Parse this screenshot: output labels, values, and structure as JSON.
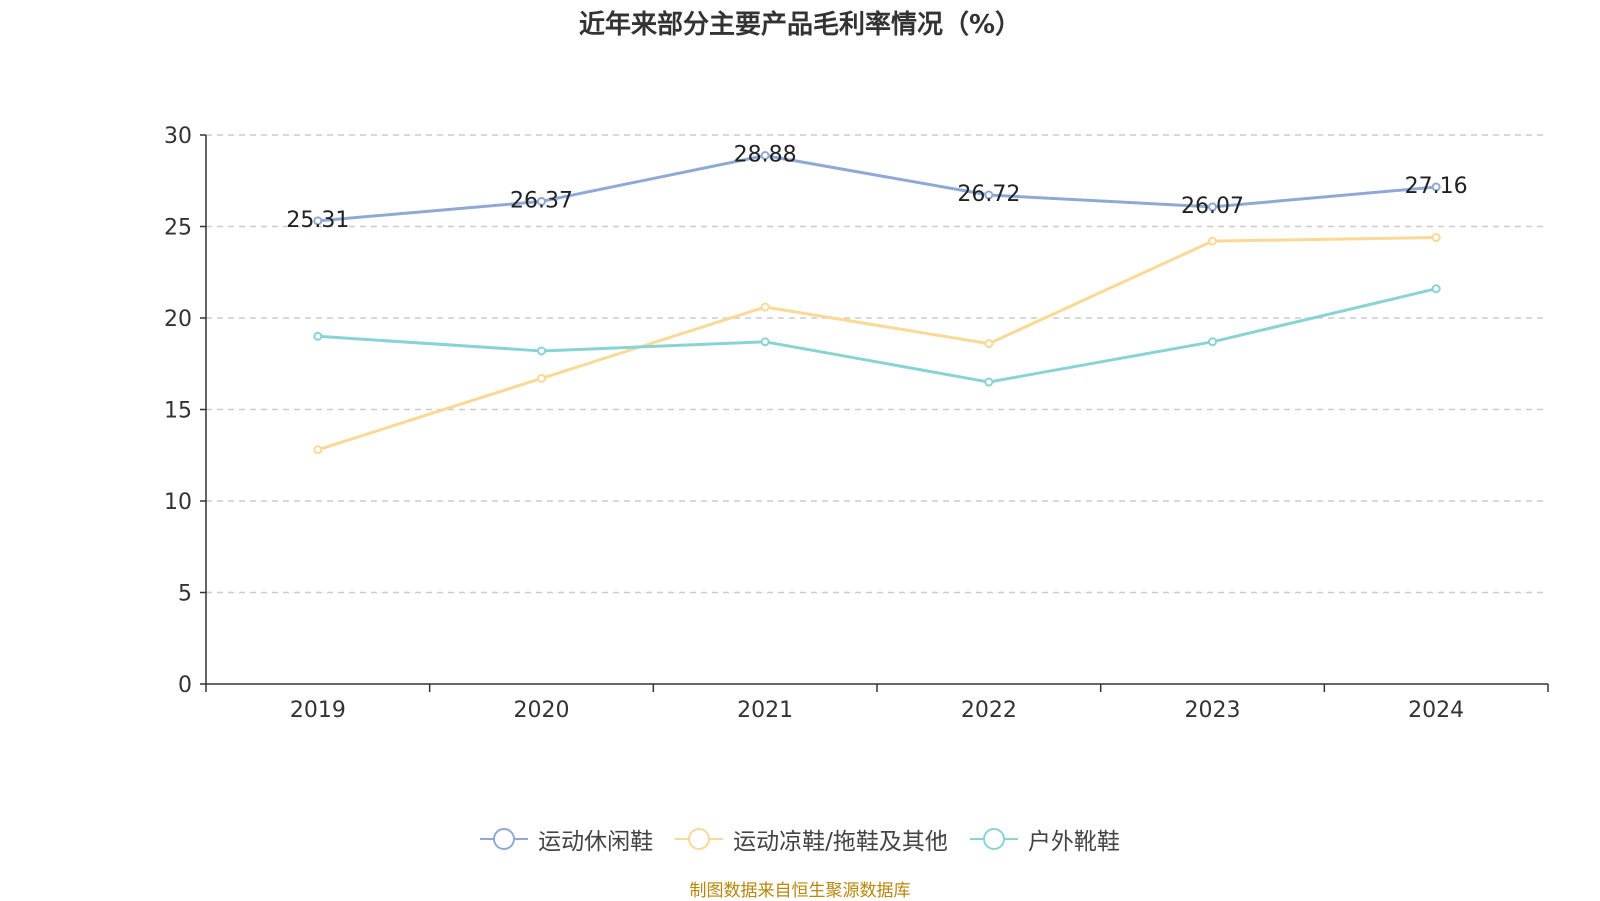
{
  "title": "近年来部分主要产品毛利率情况（%）",
  "source": "制图数据来自恒生聚源数据库",
  "chart_data": {
    "type": "line",
    "title": "近年来部分主要产品毛利率情况（%）",
    "categories": [
      "2019",
      "2020",
      "2021",
      "2022",
      "2023",
      "2024"
    ],
    "ylim": [
      0,
      30
    ],
    "yticks": [
      0,
      5,
      10,
      15,
      20,
      25,
      30
    ],
    "grid": true,
    "legend_position": "bottom-center",
    "series": [
      {
        "name": "运动休闲鞋",
        "color": "#8fa9d6",
        "values": [
          25.31,
          26.37,
          28.88,
          26.72,
          26.07,
          27.16
        ],
        "show_labels": true
      },
      {
        "name": "运动凉鞋/拖鞋及其他",
        "color": "#f9d995",
        "values": [
          12.8,
          16.7,
          20.6,
          18.6,
          24.2,
          24.4
        ],
        "show_labels": false
      },
      {
        "name": "户外靴鞋",
        "color": "#88d4d4",
        "values": [
          19.0,
          18.2,
          18.7,
          16.5,
          18.7,
          21.6
        ],
        "show_labels": false
      }
    ]
  }
}
